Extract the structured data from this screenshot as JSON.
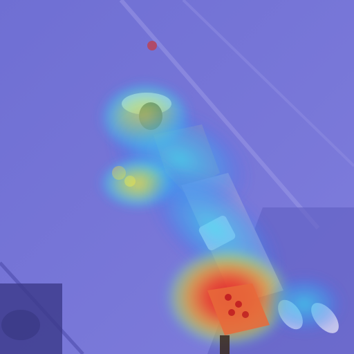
{
  "image": {
    "kind": "attention-heatmap-overlay",
    "subject": "person",
    "colormap": [
      "#2b2fd6",
      "#3a7cf2",
      "#38d7f0",
      "#7cf08a",
      "#f2e23a",
      "#f27a2a",
      "#e0202a"
    ]
  },
  "colors": {
    "background_overlay": "#5a5fc4",
    "wall": "#7a78d8",
    "floor": "#6a68c8",
    "hot_core": "#e0202a",
    "hot_mid": "#f27a2a",
    "warm": "#f2e23a",
    "cool": "#38d7f0"
  }
}
